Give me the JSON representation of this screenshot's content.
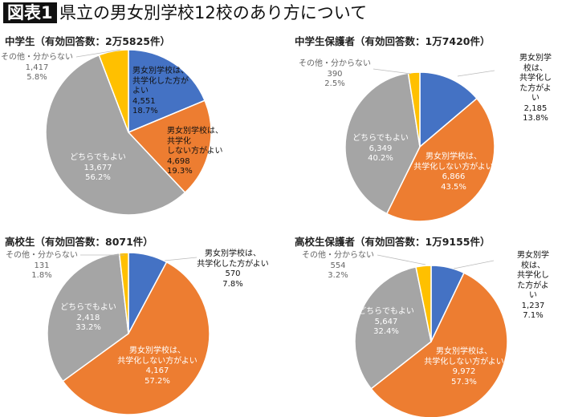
{
  "header": {
    "badge": "図表1",
    "title": "県立の男女別学校12校のあり方について"
  },
  "colors": {
    "coed": "#4472C4",
    "separate": "#ED7D31",
    "either": "#A5A5A5",
    "other": "#FFC000"
  },
  "chart_data": [
    {
      "type": "pie",
      "title": "中学生（有効回答数：2万5825件）",
      "slices": [
        {
          "label": "男女別学校は、\n共学化した方が\nよい",
          "value": "4,551",
          "percent": "18.7%",
          "v": 18.7,
          "color": "#4472C4"
        },
        {
          "label": "男女別学校は、\n共学化\nしない方がよい",
          "value": "4,698",
          "percent": "19.3%",
          "v": 19.3,
          "color": "#ED7D31"
        },
        {
          "label": "どちらでもよい",
          "value": "13,677",
          "percent": "56.2%",
          "v": 56.2,
          "color": "#A5A5A5"
        },
        {
          "label": "その他・分からない",
          "value": "1,417",
          "percent": "5.8%",
          "v": 5.8,
          "color": "#FFC000"
        }
      ]
    },
    {
      "type": "pie",
      "title": "中学生保護者（有効回答数：1万7420件）",
      "slices": [
        {
          "label": "男女別学校は、\n共学化した方がよい",
          "value": "2,185",
          "percent": "13.8%",
          "v": 13.8,
          "color": "#4472C4"
        },
        {
          "label": "男女別学校は、\n共学化しない方がよい",
          "value": "6,866",
          "percent": "43.5%",
          "v": 43.5,
          "color": "#ED7D31"
        },
        {
          "label": "どちらでもよい",
          "value": "6,349",
          "percent": "40.2%",
          "v": 40.2,
          "color": "#A5A5A5"
        },
        {
          "label": "その他・分からない",
          "value": "390",
          "percent": "2.5%",
          "v": 2.5,
          "color": "#FFC000"
        }
      ]
    },
    {
      "type": "pie",
      "title": "高校生（有効回答数：8071件）",
      "slices": [
        {
          "label": "男女別学校は、\n共学化した方がよい",
          "value": "570",
          "percent": "7.8%",
          "v": 7.8,
          "color": "#4472C4"
        },
        {
          "label": "男女別学校は、\n共学化しない方がよい",
          "value": "4,167",
          "percent": "57.2%",
          "v": 57.2,
          "color": "#ED7D31"
        },
        {
          "label": "どちらでもよい",
          "value": "2,418",
          "percent": "33.2%",
          "v": 33.2,
          "color": "#A5A5A5"
        },
        {
          "label": "その他・分からない",
          "value": "131",
          "percent": "1.8%",
          "v": 1.8,
          "color": "#FFC000"
        }
      ]
    },
    {
      "type": "pie",
      "title": "高校生保護者（有効回答数：1万9155件）",
      "slices": [
        {
          "label": "男女別学校は、\n共学化した方がよい",
          "value": "1,237",
          "percent": "7.1%",
          "v": 7.1,
          "color": "#4472C4"
        },
        {
          "label": "男女別学校は、\n共学化しない方がよい",
          "value": "9,972",
          "percent": "57.3%",
          "v": 57.3,
          "color": "#ED7D31"
        },
        {
          "label": "どちらでもよい",
          "value": "5,647",
          "percent": "32.4%",
          "v": 32.4,
          "color": "#A5A5A5"
        },
        {
          "label": "その他・分からない",
          "value": "554",
          "percent": "3.2%",
          "v": 3.2,
          "color": "#FFC000"
        }
      ]
    }
  ]
}
